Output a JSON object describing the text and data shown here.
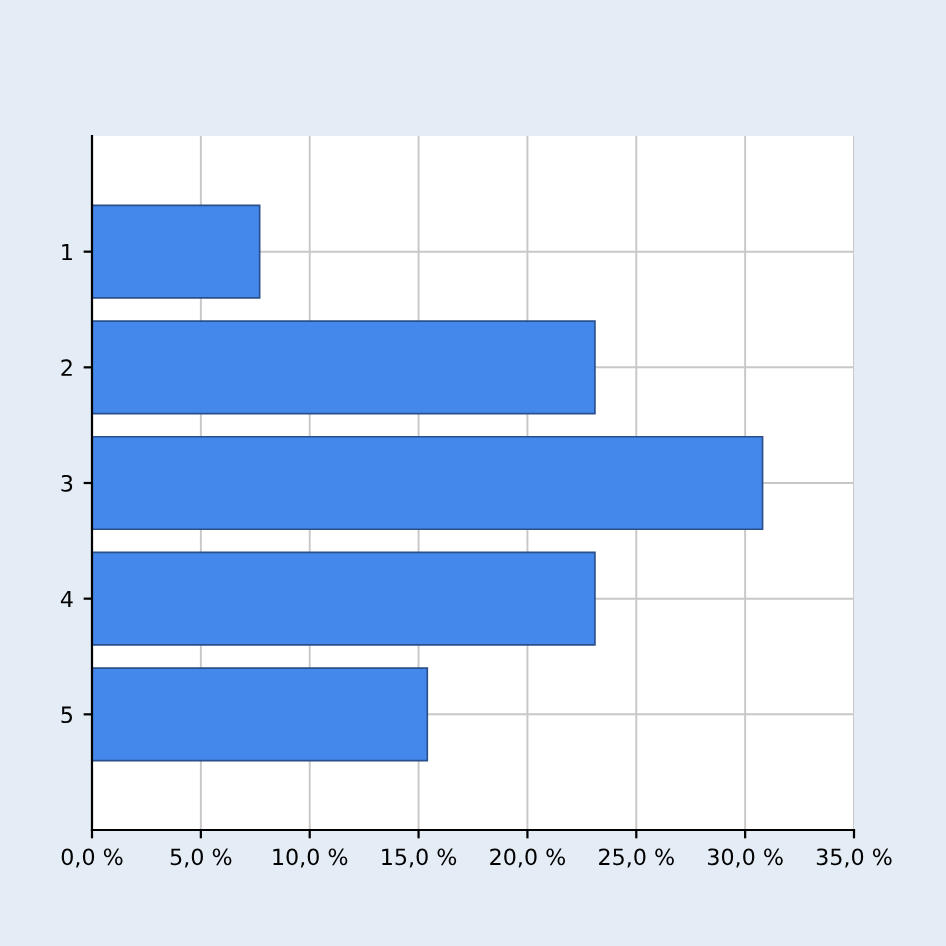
{
  "chart_data": {
    "type": "bar",
    "orientation": "horizontal",
    "categories": [
      "1",
      "2",
      "3",
      "4",
      "5"
    ],
    "values": [
      7.7,
      23.1,
      30.8,
      23.1,
      15.4
    ],
    "color": "#4588ec",
    "xlim": [
      0,
      35
    ],
    "xticks": [
      {
        "value": 0,
        "label": "0,0 %"
      },
      {
        "value": 5,
        "label": "5,0 %"
      },
      {
        "value": 10,
        "label": "10,0 %"
      },
      {
        "value": 15,
        "label": "15,0 %"
      },
      {
        "value": 20,
        "label": "20,0 %"
      },
      {
        "value": 25,
        "label": "25,0 %"
      },
      {
        "value": 30,
        "label": "30,0 %"
      },
      {
        "value": 35,
        "label": "35,0 %"
      }
    ],
    "grid": true
  }
}
